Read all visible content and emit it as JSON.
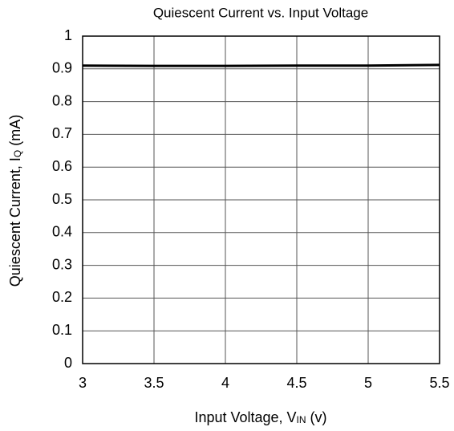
{
  "chart_data": {
    "type": "line",
    "title": "Quiescent Current vs. Input Voltage",
    "xlabel": [
      "Input Voltage, V",
      "IN",
      " (v)"
    ],
    "ylabel": [
      "Quiescent Current, I",
      "Q",
      " (mA)"
    ],
    "x": [
      3,
      3.5,
      4,
      4.5,
      5,
      5.5
    ],
    "series": [
      {
        "color": "#000000",
        "values": [
          0.91,
          0.909,
          0.909,
          0.91,
          0.91,
          0.912
        ]
      }
    ],
    "xlim": [
      3,
      5.5
    ],
    "xticks": [
      3,
      3.5,
      4,
      4.5,
      5,
      5.5
    ],
    "ylim": [
      0,
      1
    ],
    "yticks": [
      0,
      0.1,
      0.2,
      0.3,
      0.4,
      0.5,
      0.6,
      0.7,
      0.8,
      0.9,
      1
    ],
    "grid": true
  }
}
